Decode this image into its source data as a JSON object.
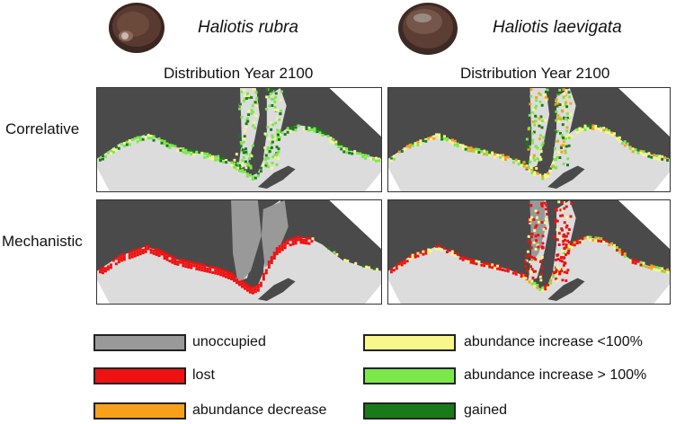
{
  "species": [
    {
      "name": "Haliotis rubra",
      "heading": "Distribution Year 2100",
      "shell_color": "#4a3226"
    },
    {
      "name": "Haliotis laevigata",
      "heading": "Distribution Year 2100",
      "shell_color": "#5a3a2e"
    }
  ],
  "rows": [
    {
      "label": "Correlative"
    },
    {
      "label": "Mechanistic"
    }
  ],
  "legend": [
    {
      "label": "unoccupied",
      "color": "#999999"
    },
    {
      "label": "lost",
      "color": "#ee1111"
    },
    {
      "label": "abundance decrease",
      "color": "#f7a11a"
    },
    {
      "label": "abundance increase <100%",
      "color": "#f7f78a"
    },
    {
      "label": "abundance increase > 100%",
      "color": "#7be84a"
    },
    {
      "label": "gained",
      "color": "#1a7a1a"
    }
  ],
  "map_colors": {
    "sea": "#4a4a4a",
    "land": "#dcdcdc"
  }
}
